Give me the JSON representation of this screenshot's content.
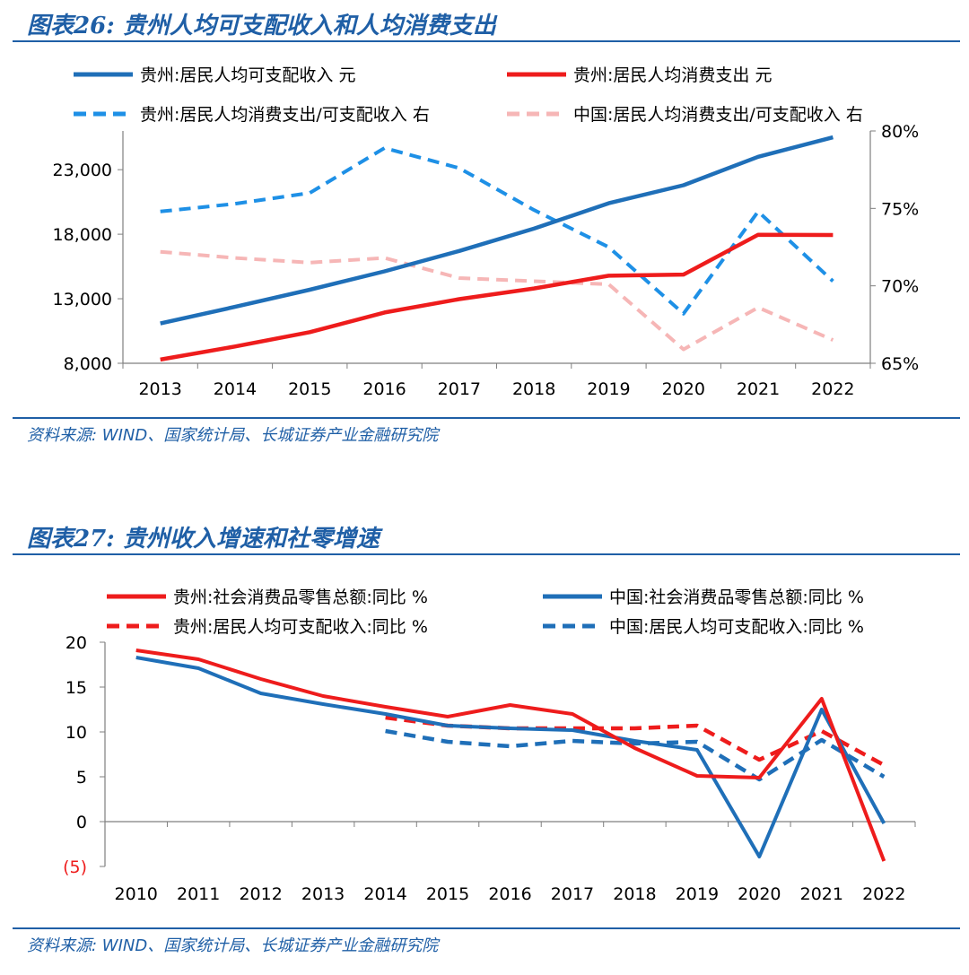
{
  "figure26": {
    "title": "图表26:  贵州人均可支配收入和人均消费支出",
    "source": "资料来源:  WIND、国家统计局、长城证券产业金融研究院"
  },
  "figure27": {
    "title": "图表27:  贵州收入增速和社零增速",
    "source": "资料来源:  WIND、国家统计局、长城证券产业金融研究院"
  },
  "colors": {
    "title": "#1f5fa6",
    "blue": "#1f6fb8",
    "red": "#ee1c1c",
    "lightblue": "#1e90e6",
    "pink": "#f6b6b6"
  },
  "chart_data": [
    {
      "type": "line",
      "title": "图表26: 贵州人均可支配收入和人均消费支出",
      "categories": [
        "2013",
        "2014",
        "2015",
        "2016",
        "2017",
        "2018",
        "2019",
        "2020",
        "2021",
        "2022"
      ],
      "y_left": {
        "ylim": [
          8000,
          26000
        ],
        "ticks": [
          8000,
          13000,
          18000,
          23000
        ],
        "tick_labels": [
          "8,000",
          "13,000",
          "18,000",
          "23,000"
        ]
      },
      "y_right": {
        "ylim": [
          65,
          80
        ],
        "ticks": [
          65,
          70,
          75,
          80
        ],
        "tick_labels": [
          "65%",
          "70%",
          "75%",
          "80%"
        ]
      },
      "series": [
        {
          "name": "贵州:居民人均可支配收入 元",
          "axis": "left",
          "style": "solid",
          "color": "#1f6fb8",
          "values": [
            11083,
            12371,
            13697,
            15121,
            16704,
            18430,
            20397,
            21795,
            23996,
            25508
          ]
        },
        {
          "name": "贵州:居民人均消费支出 元",
          "axis": "left",
          "style": "solid",
          "color": "#ee1c1c",
          "values": [
            8288,
            9303,
            10414,
            11932,
            12970,
            13798,
            14780,
            14874,
            17957,
            17939
          ]
        },
        {
          "name": "贵州:居民人均消费支出/可支配收入 右",
          "axis": "right",
          "style": "dashed",
          "color": "#1e90e6",
          "values": [
            74.8,
            75.3,
            76.0,
            78.9,
            77.6,
            74.9,
            72.5,
            68.2,
            74.8,
            70.3
          ]
        },
        {
          "name": "中国:居民人均消费支出/可支配收入 右",
          "axis": "right",
          "style": "dashed",
          "color": "#f6b6b6",
          "values": [
            72.2,
            71.8,
            71.5,
            71.8,
            70.5,
            70.3,
            70.1,
            65.9,
            68.6,
            66.5
          ]
        }
      ]
    },
    {
      "type": "line",
      "title": "图表27: 贵州收入增速和社零增速",
      "categories": [
        "2010",
        "2011",
        "2012",
        "2013",
        "2014",
        "2015",
        "2016",
        "2017",
        "2018",
        "2019",
        "2020",
        "2021",
        "2022"
      ],
      "ylim": [
        -5,
        20
      ],
      "ticks": [
        -5,
        0,
        5,
        10,
        15,
        20
      ],
      "tick_labels": [
        "(5)",
        "0",
        "5",
        "10",
        "15",
        "20"
      ],
      "series": [
        {
          "name": "贵州:社会消费品零售总额:同比 %",
          "style": "solid",
          "color": "#ee1c1c",
          "values": [
            19.1,
            18.1,
            15.9,
            14.0,
            12.8,
            11.7,
            13.0,
            12.0,
            8.2,
            5.1,
            4.9,
            13.7,
            -4.4
          ]
        },
        {
          "name": "中国:社会消费品零售总额:同比 %",
          "style": "solid",
          "color": "#1f6fb8",
          "values": [
            18.3,
            17.1,
            14.3,
            13.1,
            12.0,
            10.7,
            10.4,
            10.2,
            9.0,
            8.0,
            -3.9,
            12.5,
            -0.2
          ]
        },
        {
          "name": "贵州:居民人均可支配收入:同比 %",
          "style": "dashed",
          "color": "#ee1c1c",
          "values": [
            null,
            null,
            null,
            null,
            11.6,
            10.7,
            10.4,
            10.4,
            10.4,
            10.7,
            6.9,
            10.1,
            6.3
          ]
        },
        {
          "name": "中国:居民人均可支配收入:同比 %",
          "style": "dashed",
          "color": "#1f6fb8",
          "values": [
            null,
            null,
            null,
            null,
            10.1,
            8.9,
            8.4,
            9.0,
            8.7,
            8.9,
            4.7,
            9.1,
            5.0
          ]
        }
      ]
    }
  ]
}
